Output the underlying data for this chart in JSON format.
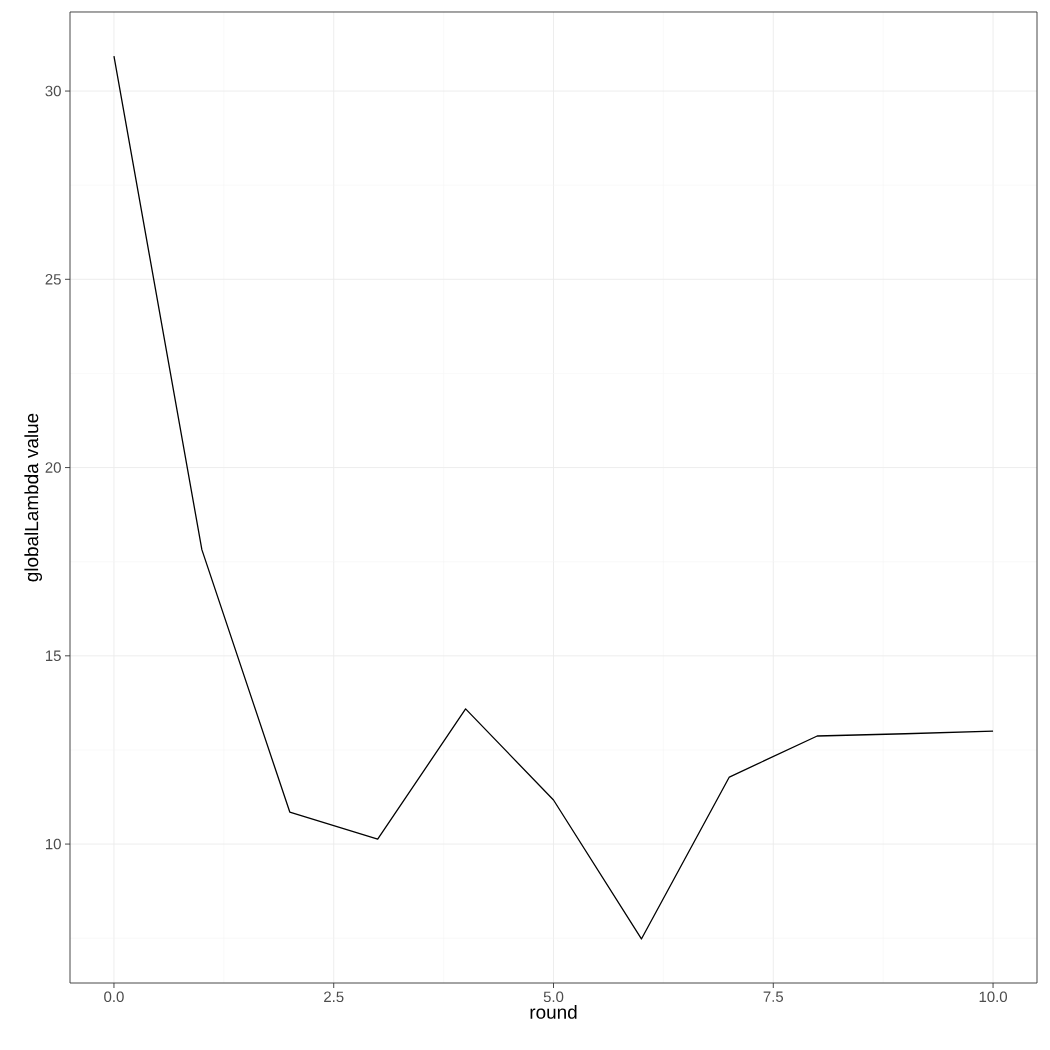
{
  "chart_data": {
    "type": "line",
    "xlabel": "round",
    "ylabel": "globalLambda value",
    "x": [
      0,
      1,
      2,
      3,
      4,
      5,
      6,
      7,
      8,
      9,
      10
    ],
    "series": [
      {
        "color": "#000000",
        "values": [
          30.93,
          17.82,
          10.85,
          10.13,
          13.59,
          11.17,
          7.48,
          11.78,
          12.87,
          12.93,
          13.0
        ]
      }
    ],
    "xlim": [
      -0.5,
      10.5
    ],
    "ylim": [
      6.31,
      32.1
    ],
    "xticks": [
      {
        "value": 0,
        "label": "0.0"
      },
      {
        "value": 2.5,
        "label": "2.5"
      },
      {
        "value": 5,
        "label": "5.0"
      },
      {
        "value": 7.5,
        "label": "7.5"
      },
      {
        "value": 10,
        "label": "10.0"
      }
    ],
    "yticks": [
      10,
      15,
      20,
      25,
      30
    ],
    "grid": true,
    "marker": "none",
    "line_style": "solid"
  }
}
